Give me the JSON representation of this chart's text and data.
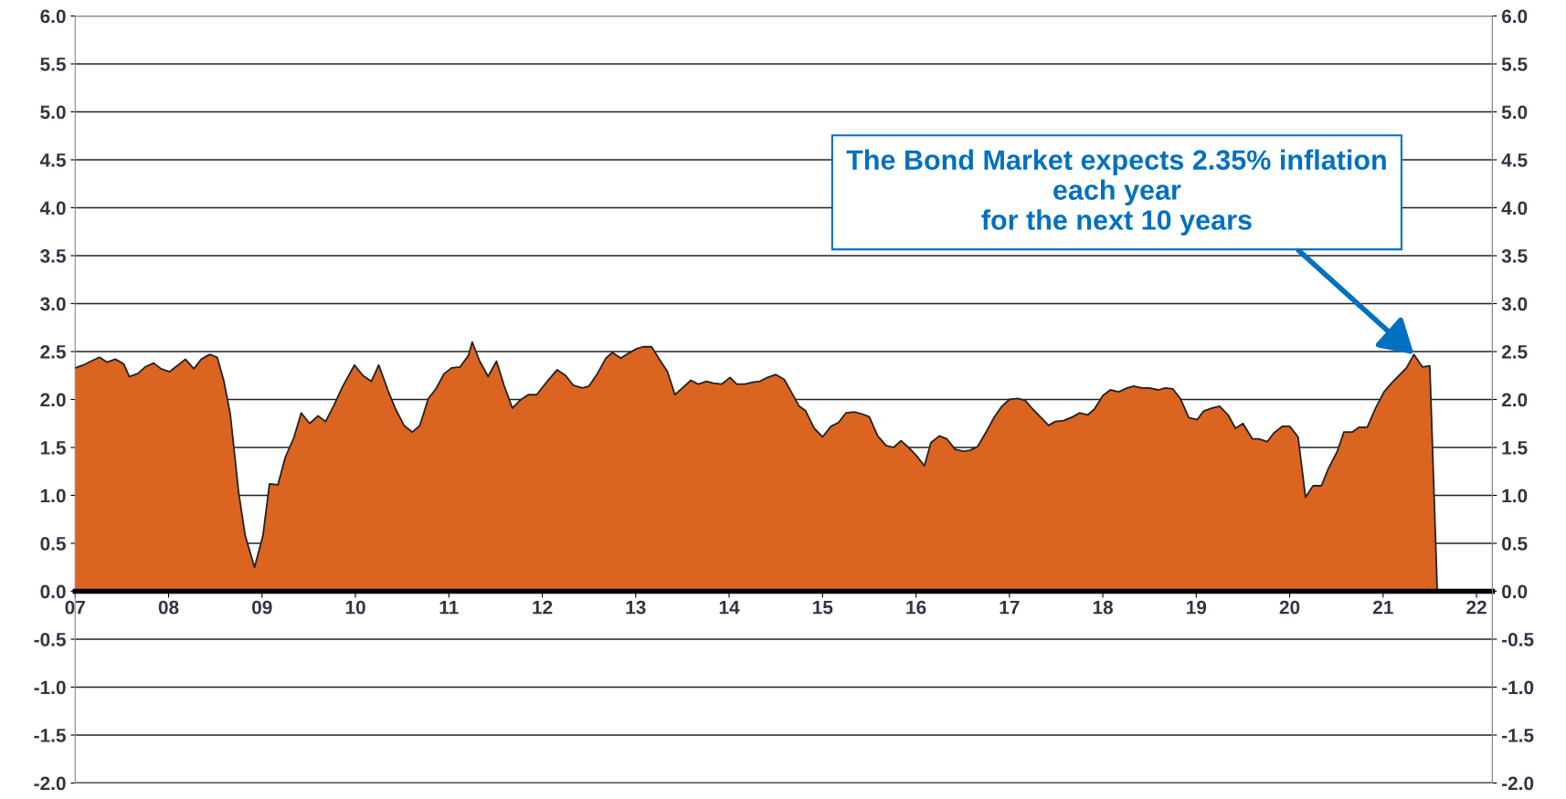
{
  "chart_data": {
    "type": "area",
    "x": [
      2007.0,
      2007.09,
      2007.17,
      2007.26,
      2007.34,
      2007.43,
      2007.52,
      2007.58,
      2007.67,
      2007.75,
      2007.84,
      2007.92,
      2008.01,
      2008.09,
      2008.18,
      2008.27,
      2008.35,
      2008.44,
      2008.52,
      2008.59,
      2008.66,
      2008.75,
      2008.82,
      2008.92,
      2009.01,
      2009.08,
      2009.17,
      2009.25,
      2009.34,
      2009.42,
      2009.51,
      2009.6,
      2009.68,
      2009.77,
      2009.86,
      2009.99,
      2010.08,
      2010.17,
      2010.25,
      2010.35,
      2010.43,
      2010.52,
      2010.61,
      2010.69,
      2010.78,
      2010.86,
      2010.95,
      2011.03,
      2011.12,
      2011.21,
      2011.25,
      2011.33,
      2011.42,
      2011.51,
      2011.59,
      2011.68,
      2011.76,
      2011.85,
      2011.94,
      2012.02,
      2012.08,
      2012.16,
      2012.25,
      2012.33,
      2012.43,
      2012.5,
      2012.59,
      2012.68,
      2012.75,
      2012.84,
      2012.92,
      2013.01,
      2013.08,
      2013.17,
      2013.26,
      2013.34,
      2013.42,
      2013.5,
      2013.59,
      2013.67,
      2013.76,
      2013.83,
      2013.92,
      2014.01,
      2014.08,
      2014.17,
      2014.25,
      2014.33,
      2014.41,
      2014.5,
      2014.59,
      2014.67,
      2014.75,
      2014.82,
      2014.91,
      2015.0,
      2015.09,
      2015.17,
      2015.25,
      2015.34,
      2015.42,
      2015.5,
      2015.59,
      2015.68,
      2015.76,
      2015.84,
      2015.92,
      2016.0,
      2016.09,
      2016.16,
      2016.25,
      2016.33,
      2016.42,
      2016.51,
      2016.58,
      2016.66,
      2016.75,
      2016.84,
      2016.92,
      2017.0,
      2017.09,
      2017.17,
      2017.25,
      2017.33,
      2017.42,
      2017.49,
      2017.58,
      2017.68,
      2017.75,
      2017.84,
      2017.91,
      2018.0,
      2018.08,
      2018.17,
      2018.26,
      2018.33,
      2018.42,
      2018.5,
      2018.59,
      2018.67,
      2018.75,
      2018.83,
      2018.92,
      2019.01,
      2019.08,
      2019.17,
      2019.25,
      2019.34,
      2019.42,
      2019.5,
      2019.6,
      2019.67,
      2019.76,
      2019.83,
      2019.92,
      2020.0,
      2020.09,
      2020.17,
      2020.25,
      2020.34,
      2020.41,
      2020.51,
      2020.58,
      2020.67,
      2020.74,
      2020.83,
      2020.92,
      2021.01,
      2021.09,
      2021.17,
      2021.25,
      2021.33,
      2021.42,
      2021.5,
      2021.58
    ],
    "series": [
      {
        "color": "#db6420",
        "values": [
          2.33,
          2.36,
          2.4,
          2.44,
          2.39,
          2.42,
          2.37,
          2.24,
          2.27,
          2.34,
          2.38,
          2.32,
          2.29,
          2.35,
          2.42,
          2.32,
          2.42,
          2.47,
          2.44,
          2.2,
          1.85,
          1.03,
          0.58,
          0.25,
          0.58,
          1.12,
          1.11,
          1.4,
          1.6,
          1.86,
          1.75,
          1.83,
          1.77,
          1.94,
          2.13,
          2.36,
          2.25,
          2.19,
          2.36,
          2.09,
          1.9,
          1.73,
          1.66,
          1.73,
          2.01,
          2.11,
          2.27,
          2.33,
          2.34,
          2.46,
          2.6,
          2.4,
          2.24,
          2.4,
          2.15,
          1.91,
          1.99,
          2.05,
          2.05,
          2.15,
          2.22,
          2.31,
          2.25,
          2.15,
          2.12,
          2.14,
          2.27,
          2.43,
          2.49,
          2.43,
          2.48,
          2.53,
          2.55,
          2.55,
          2.41,
          2.29,
          2.05,
          2.12,
          2.2,
          2.16,
          2.19,
          2.17,
          2.16,
          2.23,
          2.16,
          2.16,
          2.18,
          2.19,
          2.23,
          2.26,
          2.21,
          2.07,
          1.93,
          1.88,
          1.7,
          1.61,
          1.72,
          1.76,
          1.86,
          1.87,
          1.85,
          1.82,
          1.62,
          1.52,
          1.5,
          1.57,
          1.5,
          1.42,
          1.31,
          1.55,
          1.62,
          1.59,
          1.48,
          1.46,
          1.47,
          1.51,
          1.66,
          1.82,
          1.93,
          2.0,
          2.01,
          1.99,
          1.9,
          1.82,
          1.73,
          1.77,
          1.78,
          1.82,
          1.86,
          1.84,
          1.9,
          2.04,
          2.1,
          2.08,
          2.12,
          2.14,
          2.12,
          2.12,
          2.1,
          2.12,
          2.11,
          2.01,
          1.81,
          1.79,
          1.88,
          1.91,
          1.93,
          1.84,
          1.7,
          1.75,
          1.59,
          1.59,
          1.56,
          1.65,
          1.72,
          1.72,
          1.61,
          0.98,
          1.1,
          1.1,
          1.27,
          1.46,
          1.66,
          1.66,
          1.71,
          1.71,
          1.91,
          2.08,
          2.17,
          2.25,
          2.33,
          2.47,
          2.34,
          2.35,
          0.0
        ]
      }
    ],
    "xlim": [
      2007,
      2022.17
    ],
    "xticks": [
      {
        "value": 2007,
        "label": "07"
      },
      {
        "value": 2008,
        "label": "08"
      },
      {
        "value": 2009,
        "label": "09"
      },
      {
        "value": 2010,
        "label": "10"
      },
      {
        "value": 2011,
        "label": "11"
      },
      {
        "value": 2012,
        "label": "12"
      },
      {
        "value": 2013,
        "label": "13"
      },
      {
        "value": 2014,
        "label": "14"
      },
      {
        "value": 2015,
        "label": "15"
      },
      {
        "value": 2016,
        "label": "16"
      },
      {
        "value": 2017,
        "label": "17"
      },
      {
        "value": 2018,
        "label": "18"
      },
      {
        "value": 2019,
        "label": "19"
      },
      {
        "value": 2020,
        "label": "20"
      },
      {
        "value": 2021,
        "label": "21"
      },
      {
        "value": 2022,
        "label": "22"
      }
    ],
    "ylim": [
      -2,
      6
    ],
    "yticks": [
      {
        "value": -2,
        "label": "-2.0"
      },
      {
        "value": -1.5,
        "label": "-1.5"
      },
      {
        "value": -1,
        "label": "-1.0"
      },
      {
        "value": -0.5,
        "label": "-0.5"
      },
      {
        "value": 0,
        "label": "0.0"
      },
      {
        "value": 0.5,
        "label": "0.5"
      },
      {
        "value": 1,
        "label": "1.0"
      },
      {
        "value": 1.5,
        "label": "1.5"
      },
      {
        "value": 2,
        "label": "2.0"
      },
      {
        "value": 2.5,
        "label": "2.5"
      },
      {
        "value": 3,
        "label": "3.0"
      },
      {
        "value": 3.5,
        "label": "3.5"
      },
      {
        "value": 4,
        "label": "4.0"
      },
      {
        "value": 4.5,
        "label": "4.5"
      },
      {
        "value": 5,
        "label": "5.0"
      },
      {
        "value": 5.5,
        "label": "5.5"
      },
      {
        "value": 6,
        "label": "6.0"
      }
    ],
    "y2lim": [
      -2,
      6
    ],
    "y2ticks": [
      {
        "value": -2,
        "label": "-2.0"
      },
      {
        "value": -1.5,
        "label": "-1.5"
      },
      {
        "value": -1,
        "label": "-1.0"
      },
      {
        "value": -0.5,
        "label": "-0.5"
      },
      {
        "value": 0,
        "label": "0.0"
      },
      {
        "value": 0.5,
        "label": "0.5"
      },
      {
        "value": 1,
        "label": "1.0"
      },
      {
        "value": 1.5,
        "label": "1.5"
      },
      {
        "value": 2,
        "label": "2.0"
      },
      {
        "value": 2.5,
        "label": "2.5"
      },
      {
        "value": 3,
        "label": "3.0"
      },
      {
        "value": 3.5,
        "label": "3.5"
      },
      {
        "value": 4,
        "label": "4.0"
      },
      {
        "value": 4.5,
        "label": "4.5"
      },
      {
        "value": 5,
        "label": "5.0"
      },
      {
        "value": 5.5,
        "label": "5.5"
      },
      {
        "value": 6,
        "label": "6.0"
      }
    ],
    "grid": "y",
    "annotations": [
      {
        "text": "The Bond Market expects 2.35% inflation\neach year\nfor the next 10 years",
        "x": 2021.33,
        "y": 2.47
      }
    ]
  }
}
